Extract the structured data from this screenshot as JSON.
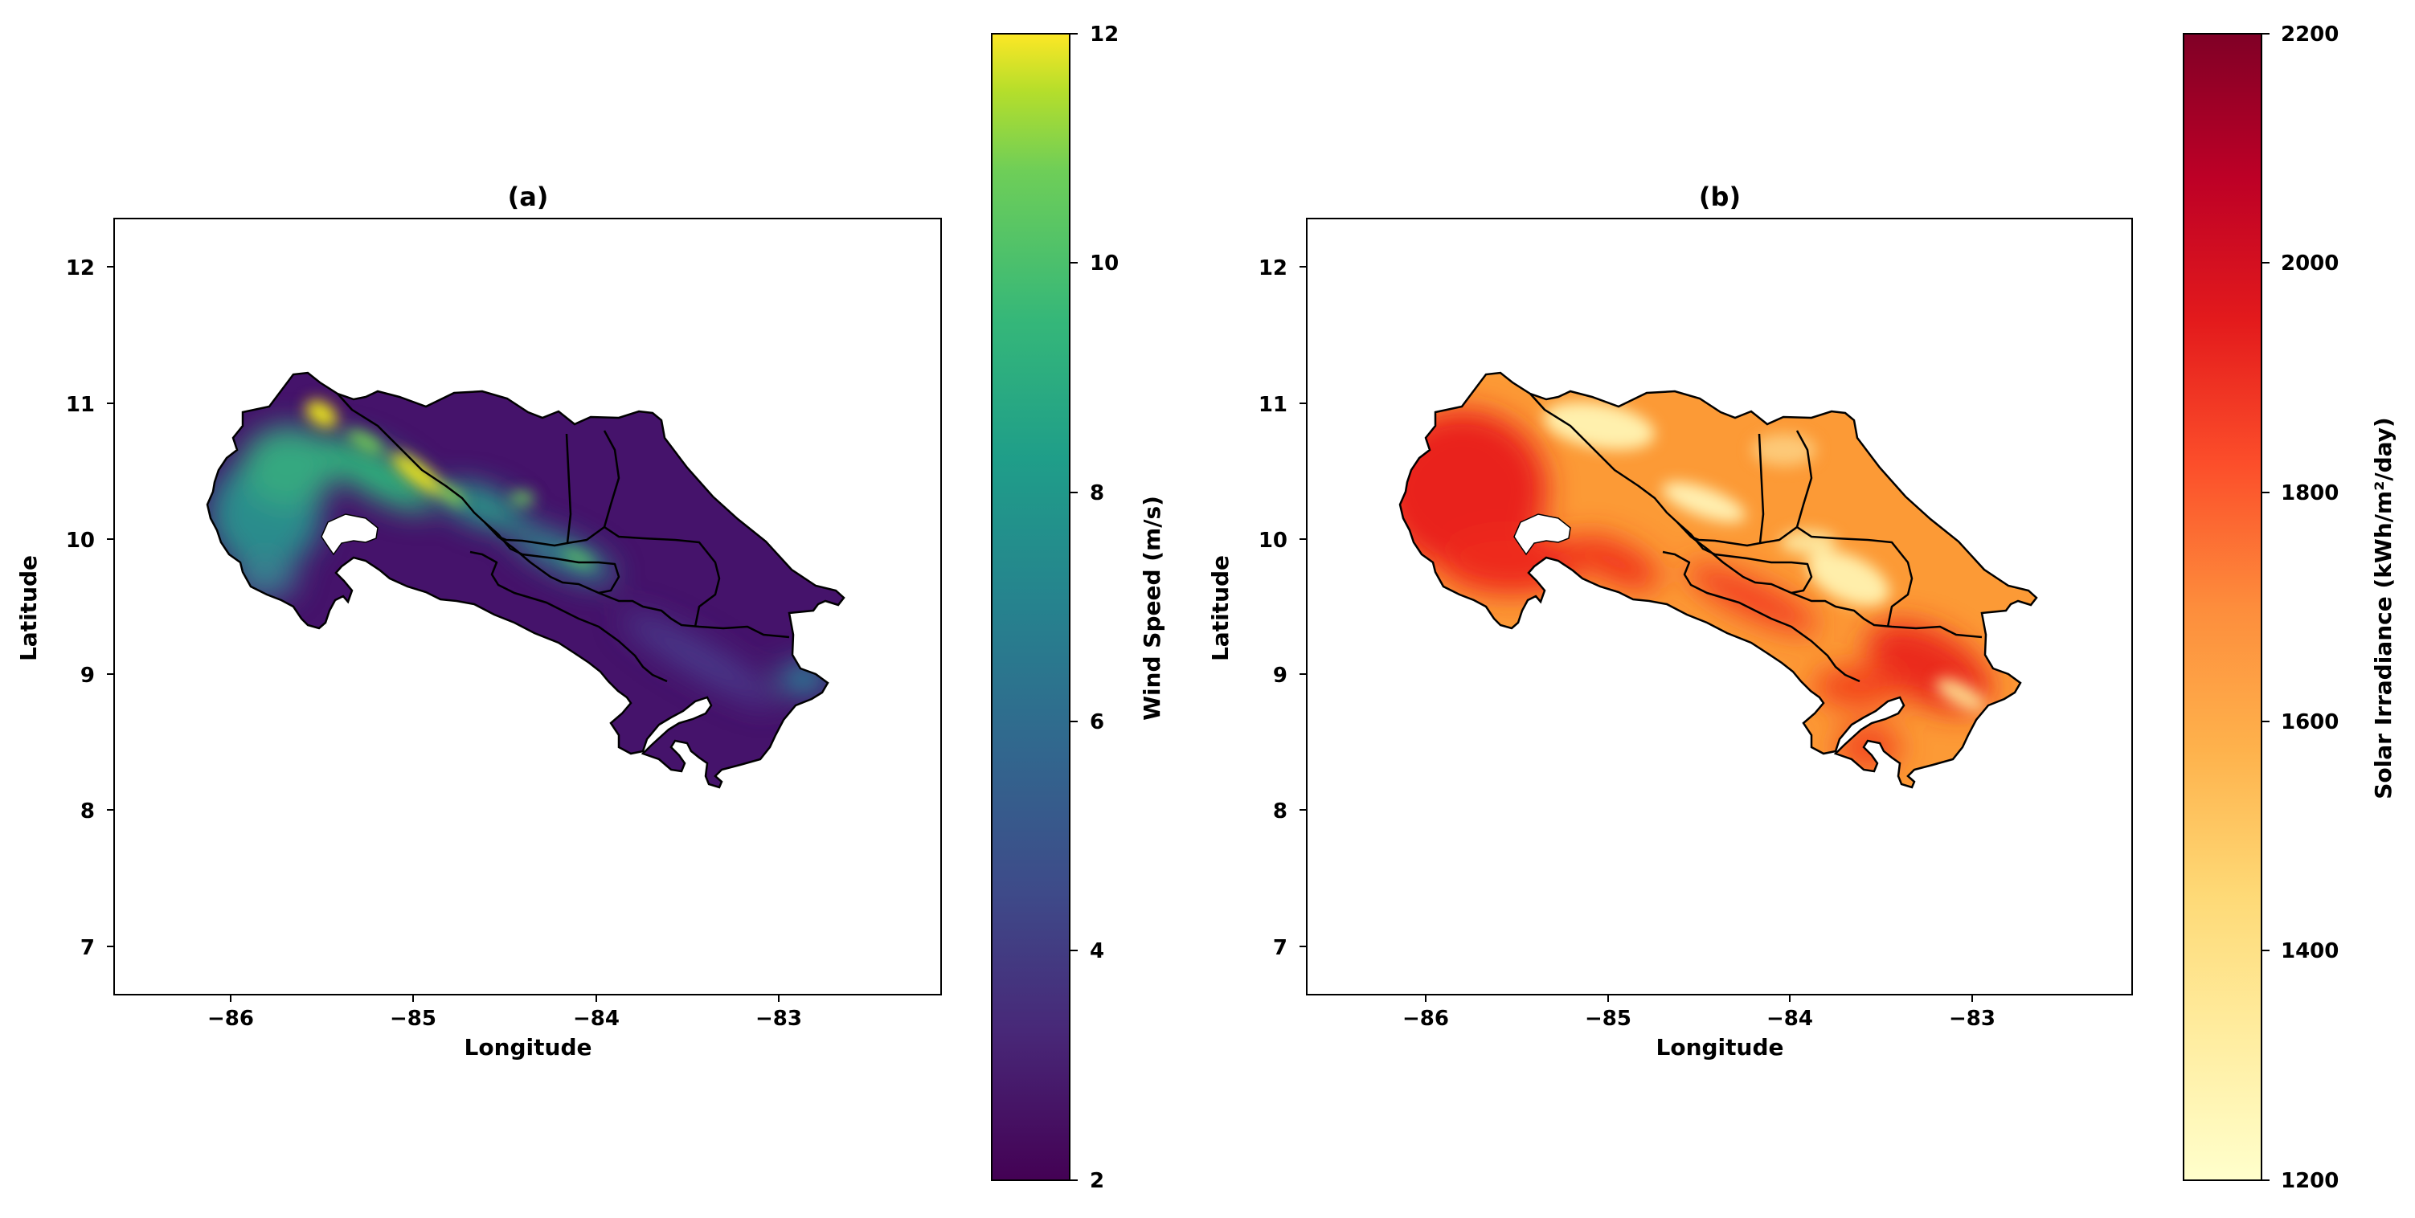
{
  "panels": [
    {
      "title": "(a)",
      "xlabel": "Longitude",
      "ylabel": "Latitude",
      "xticks": [
        "−86",
        "−85",
        "−84",
        "−83"
      ],
      "yticks": [
        "12",
        "11",
        "10",
        "9",
        "8",
        "7"
      ],
      "colorbar": {
        "label": "Wind Speed (m/s)",
        "ticks": [
          "12",
          "10",
          "8",
          "6",
          "4",
          "2"
        ],
        "range": [
          2,
          12
        ],
        "colormap": "viridis"
      }
    },
    {
      "title": "(b)",
      "xlabel": "Longitude",
      "ylabel": "Latitude",
      "xticks": [
        "−86",
        "−85",
        "−84",
        "−83"
      ],
      "yticks": [
        "12",
        "11",
        "10",
        "9",
        "8",
        "7"
      ],
      "colorbar": {
        "label": "Solar Irradiance (kWh/m²/day)",
        "ticks": [
          "2200",
          "2000",
          "1800",
          "1600",
          "1400",
          "1200"
        ],
        "range": [
          1200,
          2200
        ],
        "colormap": "YlOrRd"
      }
    }
  ],
  "map": {
    "extent_lon": [
      -86.65,
      -82.1
    ],
    "extent_lat": [
      6.65,
      12.35
    ],
    "land_color_a_base": "#45136b",
    "land_color_b_base": "#fc9a36",
    "border_color": "#000000"
  }
}
